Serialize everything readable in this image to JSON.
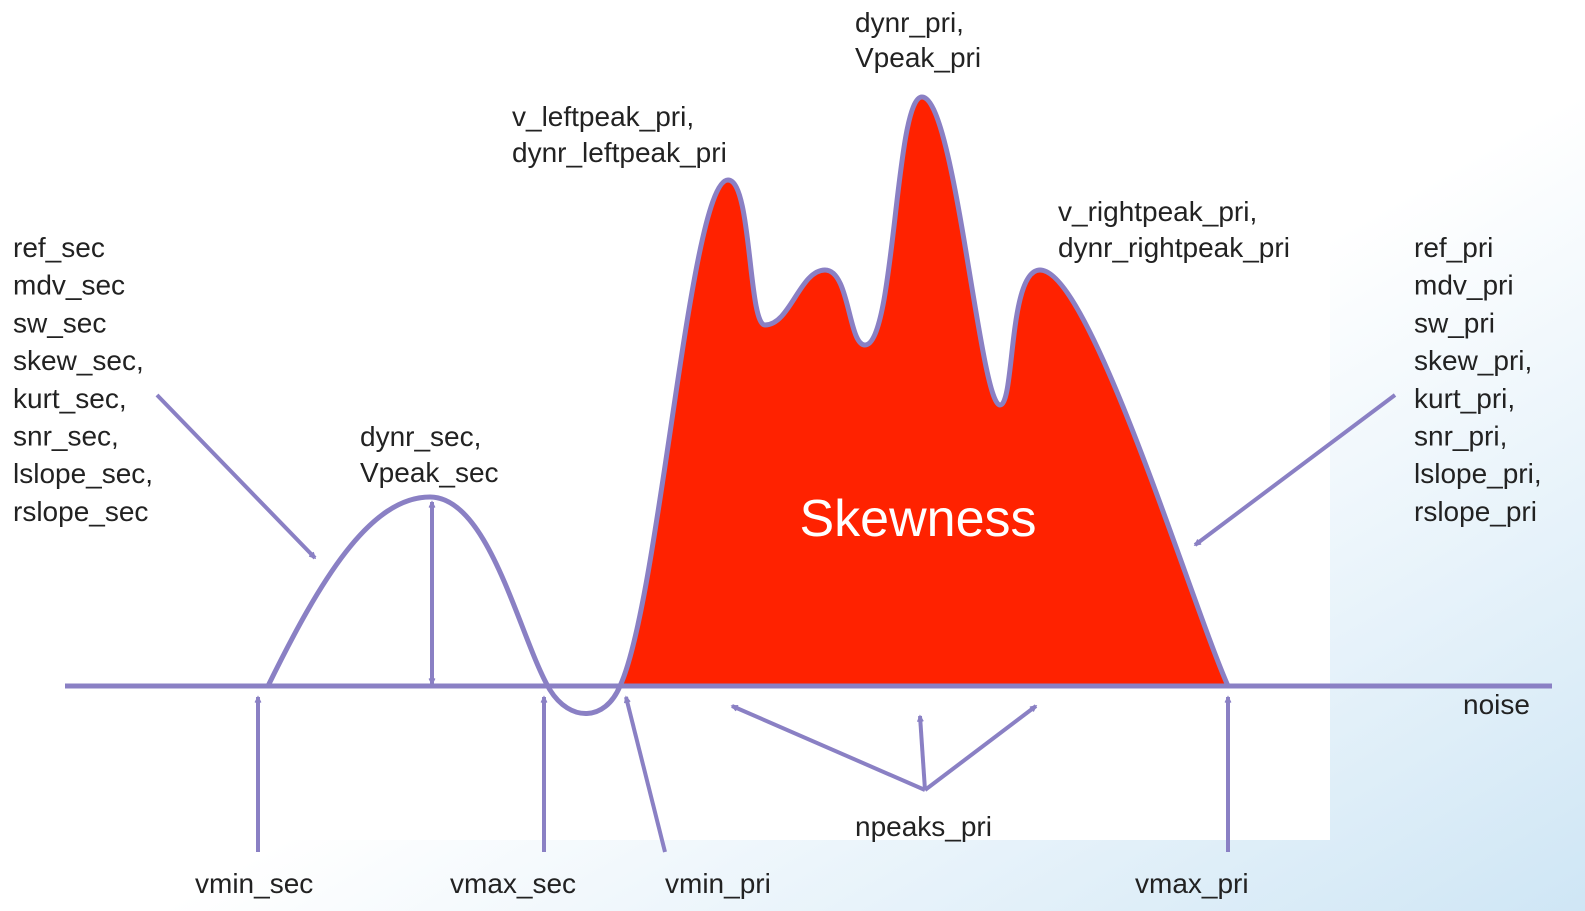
{
  "secondary_list": [
    "ref_sec",
    "mdv_sec",
    "sw_sec",
    "skew_sec,",
    "kurt_sec,",
    "snr_sec,",
    "lslope_sec,",
    "rslope_sec"
  ],
  "primary_list": [
    "ref_pri",
    "mdv_pri",
    "sw_pri",
    "skew_pri,",
    "kurt_pri,",
    "snr_pri,",
    "lslope_pri,",
    "rslope_pri"
  ],
  "peak_labels": {
    "main_peak": [
      "dynr_pri,",
      "Vpeak_pri"
    ],
    "left_peak": [
      "v_leftpeak_pri,",
      "dynr_leftpeak_pri"
    ],
    "right_peak": [
      "v_rightpeak_pri,",
      "dynr_rightpeak_pri"
    ],
    "secondary_peak": [
      "dynr_sec,",
      "Vpeak_sec"
    ]
  },
  "center_label": "Skewness",
  "noise_label": "noise",
  "npeaks_label": "npeaks_pri",
  "bottom_labels": [
    "vmin_sec",
    "vmax_sec",
    "vmin_pri",
    "vmax_pri"
  ]
}
